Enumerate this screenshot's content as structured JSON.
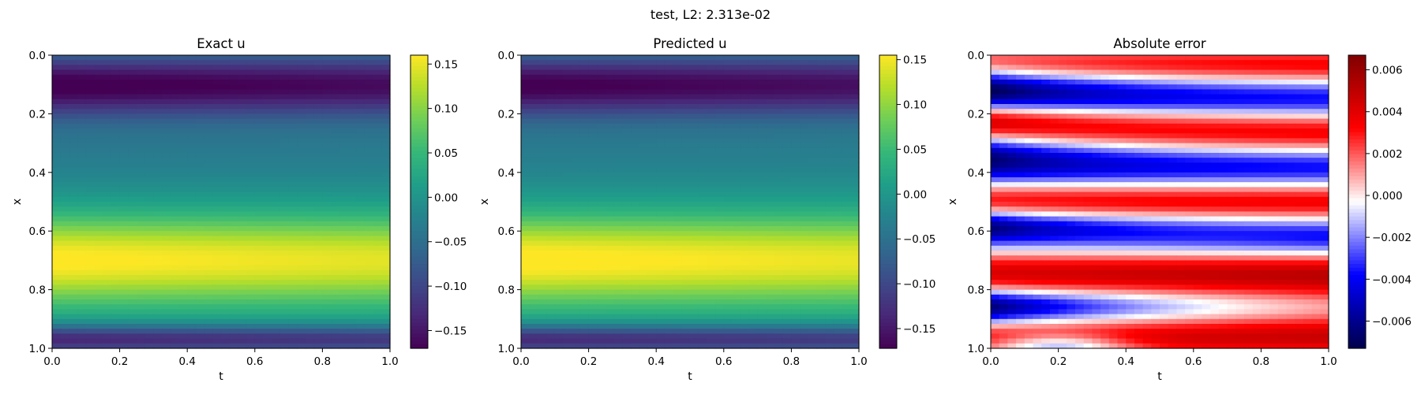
{
  "suptitle": "test, L2: 2.313e-02",
  "colors": {
    "viridis": [
      "#440154",
      "#482878",
      "#3e4989",
      "#31688e",
      "#26828e",
      "#1f9e89",
      "#35b779",
      "#6ece58",
      "#b5de2b",
      "#fde725"
    ],
    "seismic": [
      "#00004c",
      "#0000ff",
      "#ffffff",
      "#ff0000",
      "#800000"
    ]
  },
  "chart_data": [
    {
      "type": "heatmap",
      "title": "Exact u",
      "xlabel": "t",
      "ylabel": "x",
      "xlim": [
        0,
        1
      ],
      "ylim": [
        1,
        0
      ],
      "x_ticks": [
        "0.0",
        "0.2",
        "0.4",
        "0.6",
        "0.8",
        "1.0"
      ],
      "y_ticks": [
        "0.0",
        "0.2",
        "0.4",
        "0.6",
        "0.8",
        "1.0"
      ],
      "colormap": "viridis",
      "color_range": [
        -0.17,
        0.16
      ],
      "colorbar_ticks": [
        "−0.15",
        "−0.10",
        "−0.05",
        "0.00",
        "0.05",
        "0.10",
        "0.15"
      ],
      "colorbar_values": [
        -0.15,
        -0.1,
        -0.05,
        0.0,
        0.05,
        0.1,
        0.15
      ],
      "field": "exact"
    },
    {
      "type": "heatmap",
      "title": "Predicted u",
      "xlabel": "t",
      "ylabel": "x",
      "xlim": [
        0,
        1
      ],
      "ylim": [
        1,
        0
      ],
      "x_ticks": [
        "0.0",
        "0.2",
        "0.4",
        "0.6",
        "0.8",
        "1.0"
      ],
      "y_ticks": [
        "0.0",
        "0.2",
        "0.4",
        "0.6",
        "0.8",
        "1.0"
      ],
      "colormap": "viridis",
      "color_range": [
        -0.172,
        0.155
      ],
      "colorbar_ticks": [
        "−0.15",
        "−0.10",
        "−0.05",
        "0.00",
        "0.05",
        "0.10",
        "0.15"
      ],
      "colorbar_values": [
        -0.15,
        -0.1,
        -0.05,
        0.0,
        0.05,
        0.1,
        0.15
      ],
      "field": "predicted"
    },
    {
      "type": "heatmap",
      "title": "Absolute error",
      "xlabel": "t",
      "ylabel": "x",
      "xlim": [
        0,
        1
      ],
      "ylim": [
        1,
        0
      ],
      "x_ticks": [
        "0.0",
        "0.2",
        "0.4",
        "0.6",
        "0.8",
        "1.0"
      ],
      "y_ticks": [
        "0.0",
        "0.2",
        "0.4",
        "0.6",
        "0.8",
        "1.0"
      ],
      "colormap": "seismic",
      "color_range": [
        -0.0073,
        0.0067
      ],
      "colorbar_ticks": [
        "−0.006",
        "−0.004",
        "−0.002",
        "0.000",
        "0.002",
        "0.004",
        "0.006"
      ],
      "colorbar_values": [
        -0.006,
        -0.004,
        -0.002,
        0.0,
        0.002,
        0.004,
        0.006
      ],
      "field": "error"
    }
  ]
}
